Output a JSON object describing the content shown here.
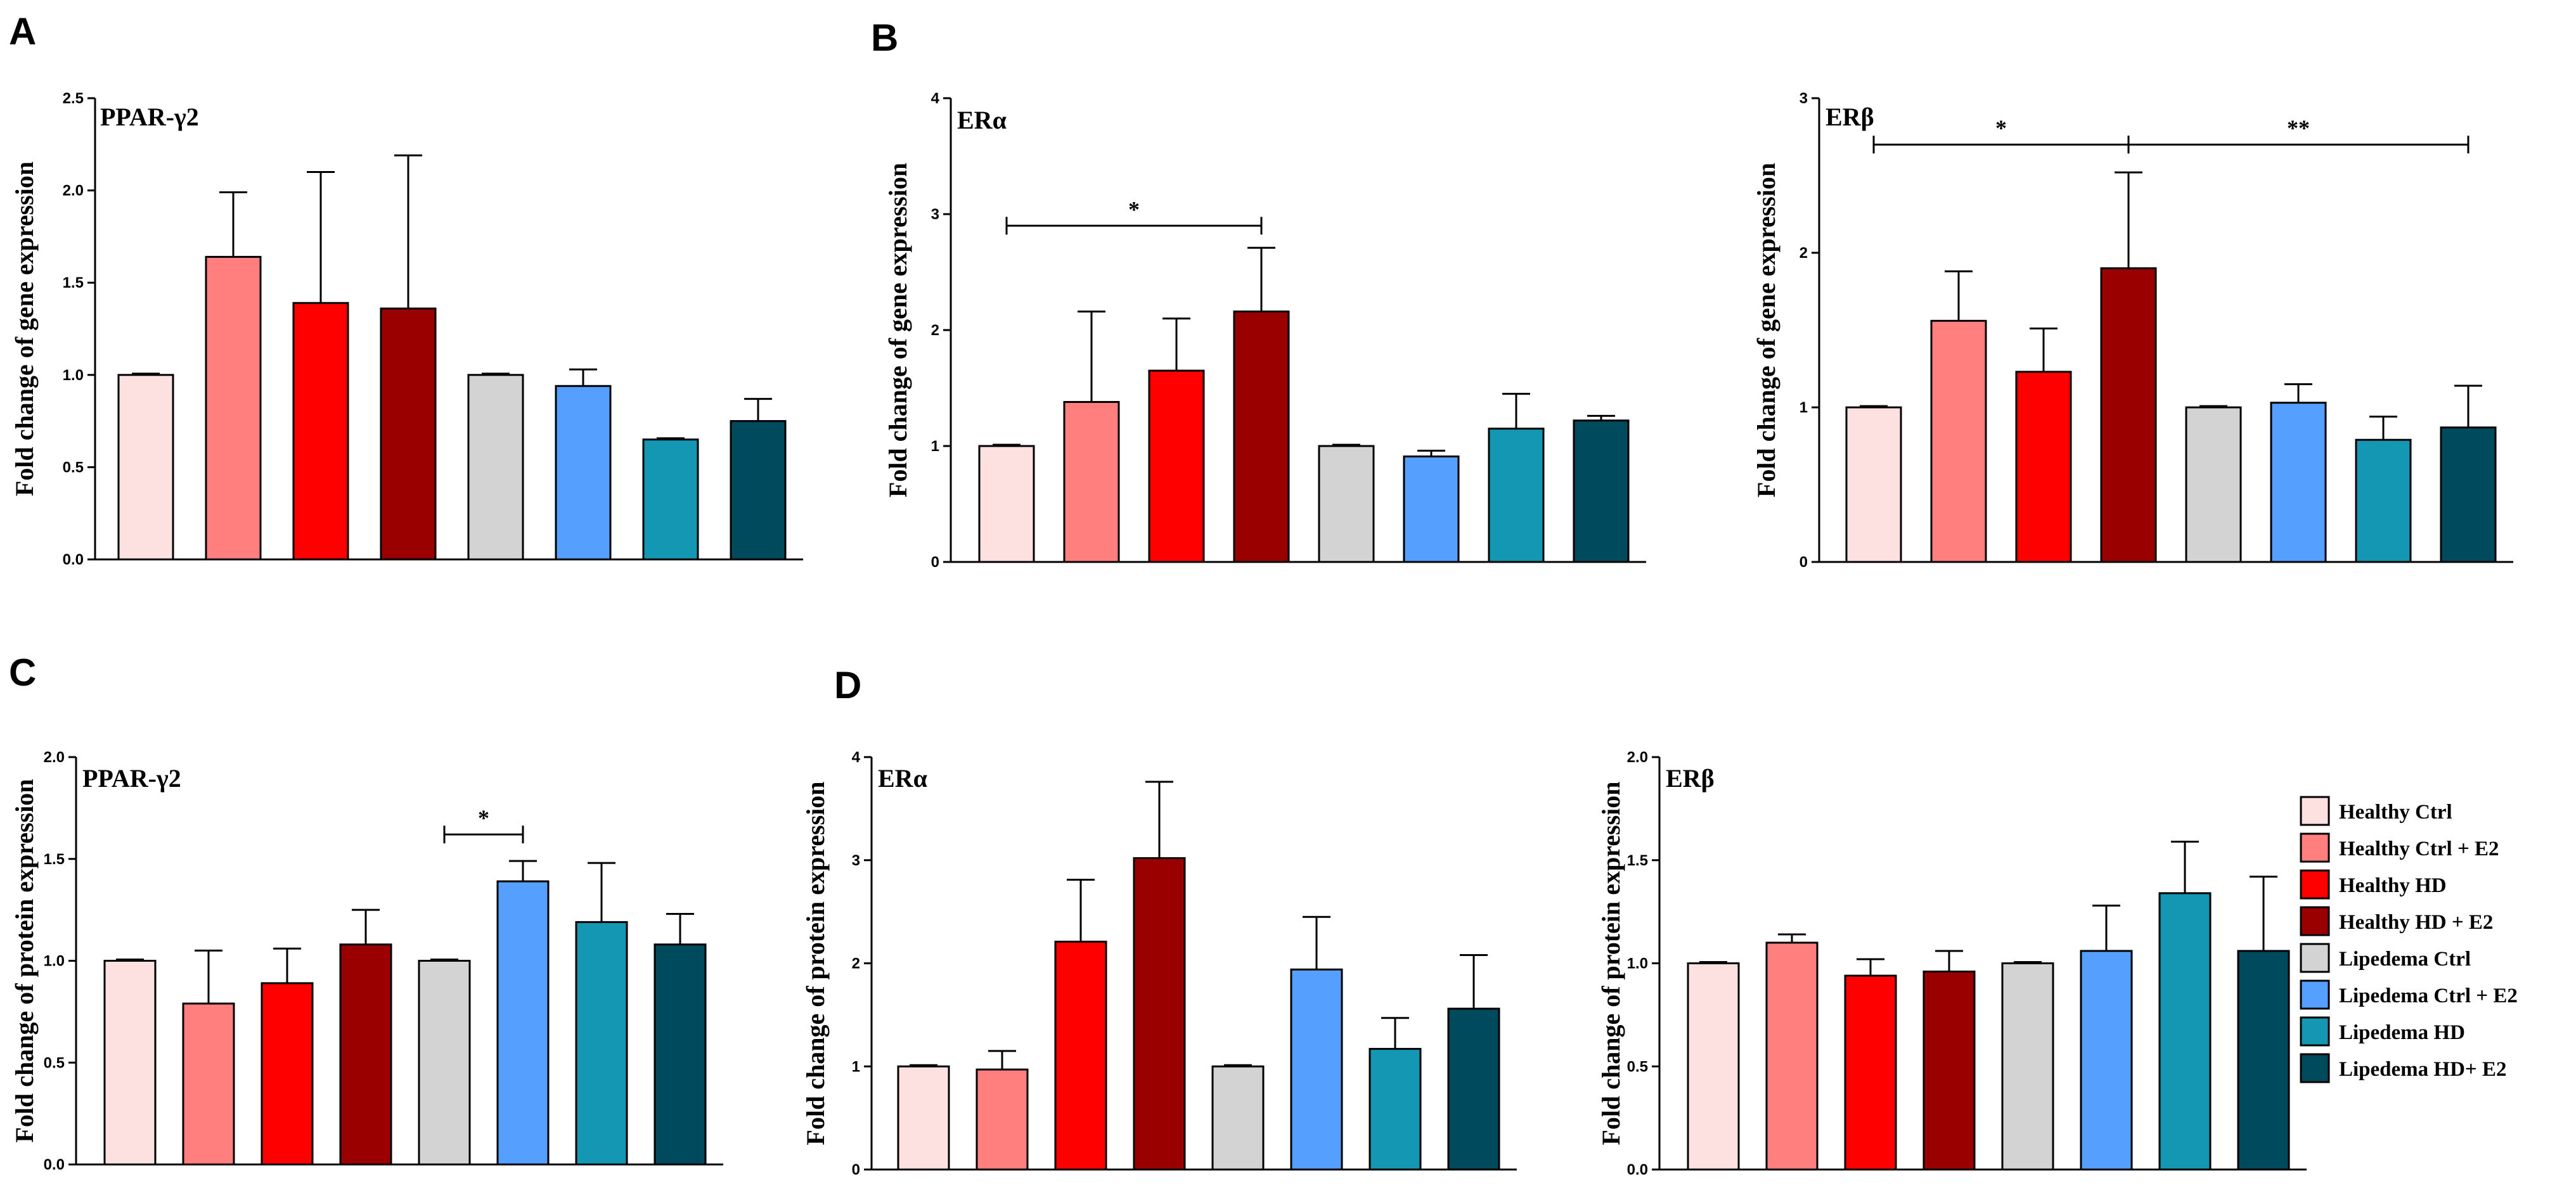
{
  "panels": [
    {
      "letter": "A"
    },
    {
      "letter": "B"
    },
    {
      "letter": "C"
    },
    {
      "letter": "D"
    }
  ],
  "legend": {
    "items": [
      {
        "label": "Healthy Ctrl",
        "color": "#fde1e1"
      },
      {
        "label": "Healthy Ctrl + E2",
        "color": "#ff7f7f"
      },
      {
        "label": "Healthy HD",
        "color": "#ff0000"
      },
      {
        "label": "Healthy HD + E2",
        "color": "#9b0000"
      },
      {
        "label": "Lipedema Ctrl",
        "color": "#d3d3d3"
      },
      {
        "label": "Lipedema Ctrl + E2",
        "color": "#559fff"
      },
      {
        "label": "Lipedema HD",
        "color": "#1497b2"
      },
      {
        "label": "Lipedema HD+ E2",
        "color": "#004a5e"
      }
    ]
  },
  "chart_data": [
    {
      "id": "A",
      "type": "bar",
      "title": "PPAR-γ2",
      "ylabel": "Fold change of gene expression",
      "ylim": [
        0,
        2.5
      ],
      "yticks": [
        "0.0",
        "0.5",
        "1.0",
        "1.5",
        "2.0",
        "2.5"
      ],
      "categories": [
        "Healthy Ctrl",
        "Healthy Ctrl + E2",
        "Healthy HD",
        "Healthy HD + E2",
        "Lipedema Ctrl",
        "Lipedema Ctrl + E2",
        "Lipedema HD",
        "Lipedema HD+ E2"
      ],
      "values": [
        1.0,
        1.64,
        1.39,
        1.36,
        1.0,
        0.94,
        0.65,
        0.75
      ],
      "errors": [
        0.01,
        0.35,
        0.71,
        0.83,
        0.01,
        0.09,
        0.02,
        0.12
      ],
      "significance": []
    },
    {
      "id": "B1",
      "type": "bar",
      "title": "ERα",
      "ylabel": "Fold change of gene expression",
      "ylim": [
        0,
        4
      ],
      "yticks": [
        "0",
        "1",
        "2",
        "3",
        "4"
      ],
      "categories": [
        "Healthy Ctrl",
        "Healthy Ctrl + E2",
        "Healthy HD",
        "Healthy HD + E2",
        "Lipedema Ctrl",
        "Lipedema Ctrl + E2",
        "Lipedema HD",
        "Lipedema HD+ E2"
      ],
      "values": [
        1.0,
        1.38,
        1.65,
        2.16,
        1.0,
        0.91,
        1.15,
        1.22
      ],
      "errors": [
        0.01,
        0.78,
        0.45,
        0.55,
        0.01,
        0.05,
        0.3,
        0.04
      ],
      "significance": [
        {
          "from": 0,
          "to": 3,
          "y": 2.9,
          "label": "*"
        }
      ]
    },
    {
      "id": "B2",
      "type": "bar",
      "title": "ERβ",
      "ylabel": "Fold change of gene expression",
      "ylim": [
        0,
        3
      ],
      "yticks": [
        "0",
        "1",
        "2",
        "3"
      ],
      "categories": [
        "Healthy Ctrl",
        "Healthy Ctrl + E2",
        "Healthy HD",
        "Healthy HD + E2",
        "Lipedema Ctrl",
        "Lipedema Ctrl + E2",
        "Lipedema HD",
        "Lipedema HD+ E2"
      ],
      "values": [
        1.0,
        1.56,
        1.23,
        1.9,
        1.0,
        1.03,
        0.79,
        0.87
      ],
      "errors": [
        0.01,
        0.32,
        0.28,
        0.62,
        0.01,
        0.12,
        0.15,
        0.27
      ],
      "significance": [
        {
          "from": 0,
          "to": 3,
          "y": 2.7,
          "label": "*"
        },
        {
          "from": 3,
          "to": 7,
          "y": 2.7,
          "label": "**"
        }
      ]
    },
    {
      "id": "C",
      "type": "bar",
      "title": "PPAR-γ2",
      "ylabel": "Fold change of protein expression",
      "ylim": [
        0,
        2.0
      ],
      "yticks": [
        "0.0",
        "0.5",
        "1.0",
        "1.5",
        "2.0"
      ],
      "categories": [
        "Healthy Ctrl",
        "Healthy Ctrl + E2",
        "Healthy HD",
        "Healthy HD + E2",
        "Lipedema Ctrl",
        "Lipedema Ctrl + E2",
        "Lipedema HD",
        "Lipedema HD+ E2"
      ],
      "values": [
        1.0,
        0.79,
        0.89,
        1.08,
        1.0,
        1.39,
        1.19,
        1.08
      ],
      "errors": [
        0.005,
        0.26,
        0.17,
        0.17,
        0.005,
        0.1,
        0.29,
        0.15
      ],
      "significance": [
        {
          "from": 4,
          "to": 5,
          "y": 1.62,
          "label": "*"
        }
      ]
    },
    {
      "id": "D1",
      "type": "bar",
      "title": "ERα",
      "ylabel": "Fold change of protein expression",
      "ylim": [
        0,
        4
      ],
      "yticks": [
        "0",
        "1",
        "2",
        "3",
        "4"
      ],
      "categories": [
        "Healthy Ctrl",
        "Healthy Ctrl + E2",
        "Healthy HD",
        "Healthy HD + E2",
        "Lipedema Ctrl",
        "Lipedema Ctrl + E2",
        "Lipedema HD",
        "Lipedema HD+ E2"
      ],
      "values": [
        1.0,
        0.97,
        2.21,
        3.02,
        1.0,
        1.94,
        1.17,
        1.56
      ],
      "errors": [
        0.01,
        0.18,
        0.6,
        0.74,
        0.01,
        0.51,
        0.3,
        0.52
      ],
      "significance": []
    },
    {
      "id": "D2",
      "type": "bar",
      "title": "ERβ",
      "ylabel": "Fold change of protein expression",
      "ylim": [
        0,
        2.0
      ],
      "yticks": [
        "0.0",
        "0.5",
        "1.0",
        "1.5",
        "2.0"
      ],
      "categories": [
        "Healthy Ctrl",
        "Healthy Ctrl + E2",
        "Healthy HD",
        "Healthy HD + E2",
        "Lipedema Ctrl",
        "Lipedema Ctrl + E2",
        "Lipedema HD",
        "Lipedema HD+ E2"
      ],
      "values": [
        1.0,
        1.1,
        0.94,
        0.96,
        1.0,
        1.06,
        1.34,
        1.06
      ],
      "errors": [
        0.005,
        0.04,
        0.08,
        0.1,
        0.005,
        0.22,
        0.25,
        0.36
      ],
      "significance": []
    }
  ]
}
